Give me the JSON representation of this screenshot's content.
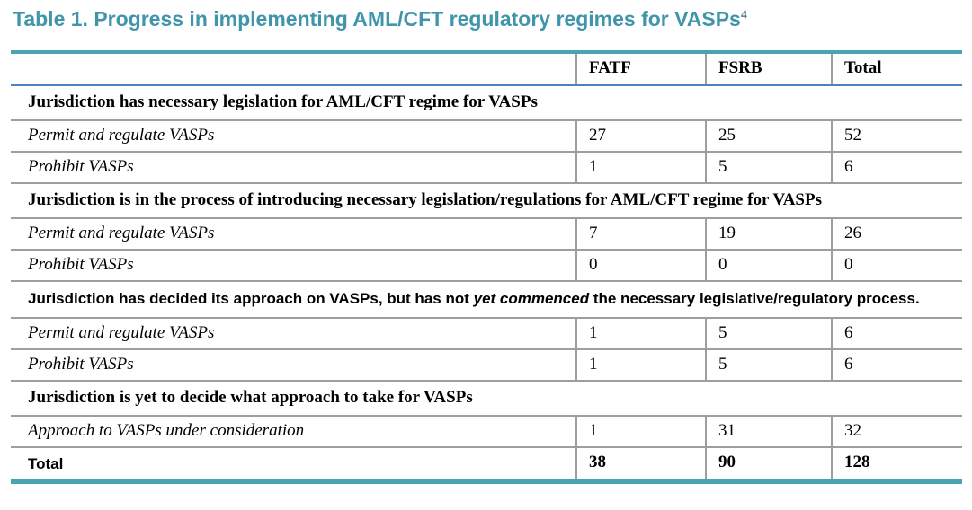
{
  "colors": {
    "title_teal": "#4095AB",
    "table_border_teal": "#47A4B0",
    "header_rule_blue": "#4F81BD",
    "grid_gray": "#9E9E9E",
    "text_black": "#000000"
  },
  "title": {
    "text": "Table 1. Progress in implementing AML/CFT regulatory regimes for VASPs",
    "footnote_ref": "4"
  },
  "table": {
    "columns": [
      "",
      "FATF",
      "FSRB",
      "Total"
    ],
    "rows": [
      {
        "type": "section",
        "label": "Jurisdiction has necessary legislation for AML/CFT regime for VASPs"
      },
      {
        "type": "data",
        "label": "Permit and regulate VASPs",
        "values": [
          27,
          25,
          52
        ]
      },
      {
        "type": "data",
        "label": "Prohibit VASPs",
        "values": [
          1,
          5,
          6
        ]
      },
      {
        "type": "section",
        "label": "Jurisdiction is in the process of introducing necessary legislation/regulations for AML/CFT regime for VASPs"
      },
      {
        "type": "data",
        "label": "Permit and regulate VASPs",
        "values": [
          7,
          19,
          26
        ]
      },
      {
        "type": "data",
        "label": "Prohibit VASPs",
        "values": [
          0,
          0,
          0
        ]
      },
      {
        "type": "section-sans",
        "label_parts": {
          "before": "Jurisdiction has decided its approach on VASPs, but has not ",
          "italic": "yet commenced",
          "after": " the necessary legislative/regulatory process."
        }
      },
      {
        "type": "data",
        "label": "Permit and regulate VASPs",
        "values": [
          1,
          5,
          6
        ]
      },
      {
        "type": "data",
        "label": "Prohibit VASPs",
        "values": [
          1,
          5,
          6
        ]
      },
      {
        "type": "section",
        "label": "Jurisdiction is yet to decide what approach to take for VASPs"
      },
      {
        "type": "data",
        "label": "Approach to VASPs under consideration",
        "values": [
          1,
          31,
          32
        ]
      },
      {
        "type": "total",
        "label": "Total",
        "values": [
          38,
          90,
          128
        ]
      }
    ]
  }
}
